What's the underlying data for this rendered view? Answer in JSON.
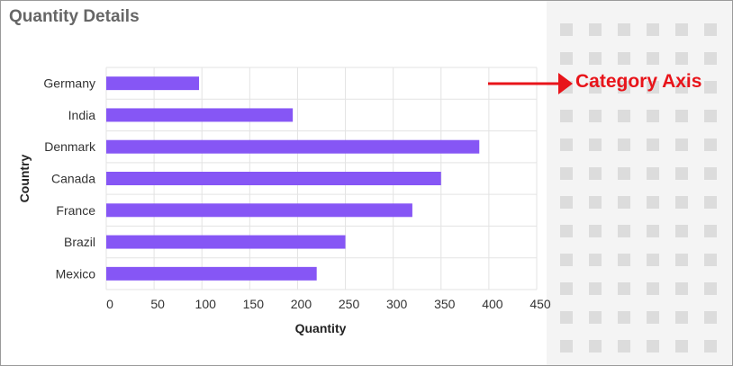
{
  "panel": {
    "title": "Quantity Details"
  },
  "annotation": {
    "label": "Category Axis",
    "color": "#e8141a"
  },
  "chart_data": {
    "type": "bar",
    "orientation": "horizontal",
    "categories": [
      "Germany",
      "India",
      "Denmark",
      "Canada",
      "France",
      "Brazil",
      "Mexico"
    ],
    "values": [
      97,
      195,
      390,
      350,
      320,
      250,
      220
    ],
    "xlabel": "Quantity",
    "ylabel": "Country",
    "xlim": [
      0,
      450
    ],
    "xticks": [
      "0",
      "50",
      "100",
      "150",
      "200",
      "250",
      "300",
      "350",
      "400",
      "450"
    ],
    "grid": true,
    "bar_color": "#8656f5"
  }
}
